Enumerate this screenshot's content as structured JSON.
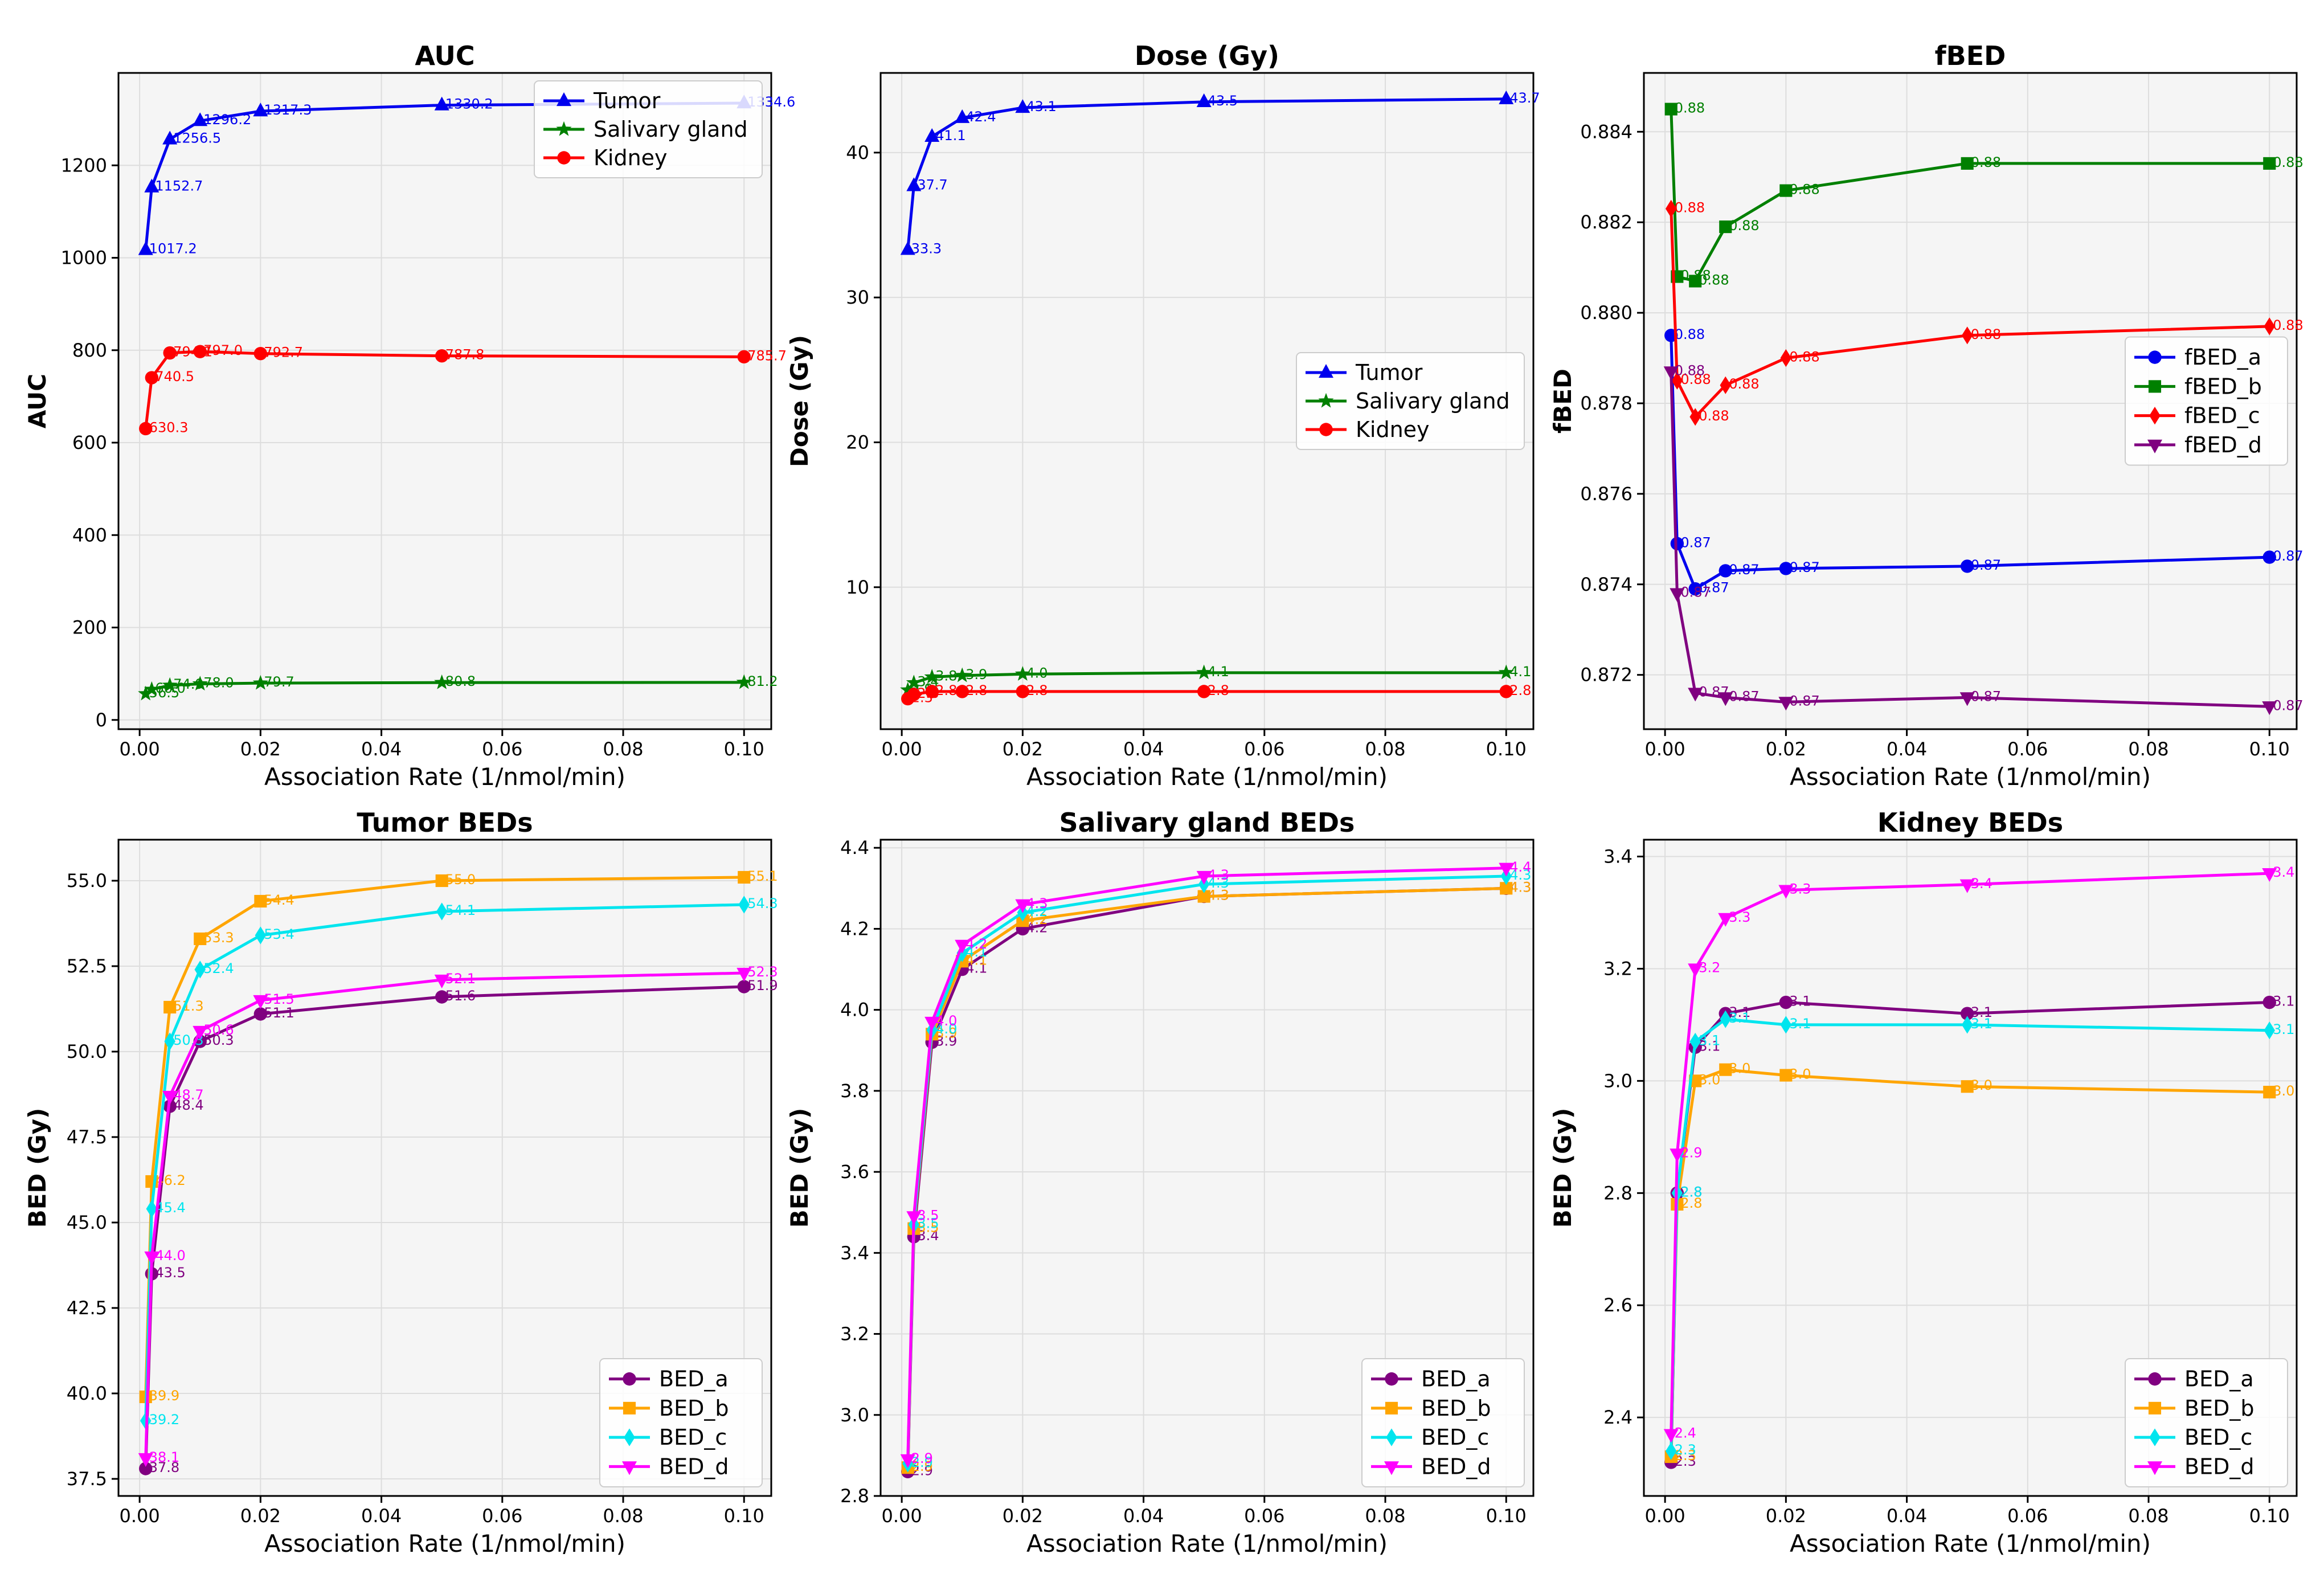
{
  "figure": {
    "panels": 6
  },
  "colors": {
    "blue": "#0000ee",
    "green": "#008000",
    "red": "#ff0000",
    "purple": "#800080",
    "orange": "#ffa500",
    "cyan": "#00e5ee",
    "magenta": "#ff00ff",
    "plot_bg": "#f5f5f5",
    "grid": "#dddddd"
  },
  "chart_data": [
    {
      "type": "line",
      "title": "AUC",
      "xlabel": "Association Rate (1/nmol/min)",
      "ylabel": "AUC",
      "xlim": [
        -0.0035,
        0.1045
      ],
      "ylim": [
        -20,
        1400
      ],
      "xticks": [
        0.0,
        0.02,
        0.04,
        0.06,
        0.08,
        0.1
      ],
      "xtick_labels": [
        "0.00",
        "0.02",
        "0.04",
        "0.06",
        "0.08",
        "0.10"
      ],
      "yticks": [
        0,
        200,
        400,
        600,
        800,
        1000,
        1200
      ],
      "ytick_labels": [
        "0",
        "200",
        "400",
        "600",
        "800",
        "1000",
        "1200"
      ],
      "legend": "top-right",
      "x": [
        0.001,
        0.002,
        0.005,
        0.01,
        0.02,
        0.05,
        0.1
      ],
      "series": [
        {
          "name": "Tumor",
          "color": "blue",
          "marker": "triangle-up",
          "values": [
            1017.2,
            1152.7,
            1256.5,
            1296.2,
            1317.3,
            1330.2,
            1334.6
          ],
          "labels": [
            "1017.2",
            "1152.7",
            "1256.5",
            "1296.2",
            "1317.3",
            "1330.2",
            "1334.6"
          ]
        },
        {
          "name": "Salivary gland",
          "color": "green",
          "marker": "star",
          "values": [
            56.5,
            66.0,
            74.9,
            78.0,
            79.7,
            80.8,
            81.2
          ],
          "labels": [
            "56.5",
            "66.0",
            "74.9",
            "78.0",
            "79.7",
            "80.8",
            "81.2"
          ]
        },
        {
          "name": "Kidney",
          "color": "red",
          "marker": "circle",
          "values": [
            630.3,
            740.5,
            794.1,
            797.0,
            792.7,
            787.8,
            785.7
          ],
          "labels": [
            "630.3",
            "740.5",
            "794.1",
            "797.0",
            "792.7",
            "787.8",
            "785.7"
          ]
        }
      ]
    },
    {
      "type": "line",
      "title": "Dose (Gy)",
      "xlabel": "Association Rate (1/nmol/min)",
      "ylabel": "Dose (Gy)",
      "xlim": [
        -0.0035,
        0.1045
      ],
      "ylim": [
        0.2,
        45.5
      ],
      "xticks": [
        0.0,
        0.02,
        0.04,
        0.06,
        0.08,
        0.1
      ],
      "xtick_labels": [
        "0.00",
        "0.02",
        "0.04",
        "0.06",
        "0.08",
        "0.10"
      ],
      "yticks": [
        10,
        20,
        30,
        40
      ],
      "ytick_labels": [
        "10",
        "20",
        "30",
        "40"
      ],
      "legend": "center-right",
      "x": [
        0.001,
        0.002,
        0.005,
        0.01,
        0.02,
        0.05,
        0.1
      ],
      "series": [
        {
          "name": "Tumor",
          "color": "blue",
          "marker": "triangle-up",
          "values": [
            33.3,
            37.7,
            41.1,
            42.4,
            43.1,
            43.5,
            43.7
          ],
          "labels": [
            "33.3",
            "37.7",
            "41.1",
            "42.4",
            "43.1",
            "43.5",
            "43.7"
          ]
        },
        {
          "name": "Salivary gland",
          "color": "green",
          "marker": "star",
          "values": [
            2.9,
            3.4,
            3.8,
            3.9,
            4.0,
            4.1,
            4.1
          ],
          "labels": [
            "2.9",
            "3.4",
            "3.8",
            "3.9",
            "4.0",
            "4.1",
            "4.1"
          ]
        },
        {
          "name": "Kidney",
          "color": "red",
          "marker": "circle",
          "values": [
            2.3,
            2.6,
            2.8,
            2.8,
            2.8,
            2.8,
            2.8
          ],
          "labels": [
            "2.3",
            "2.6",
            "2.8",
            "2.8",
            "2.8",
            "2.8",
            "2.8"
          ]
        }
      ]
    },
    {
      "type": "line",
      "title": "fBED",
      "xlabel": "Association Rate (1/nmol/min)",
      "ylabel": "fBED",
      "xlim": [
        -0.0035,
        0.1045
      ],
      "ylim": [
        0.8708,
        0.8853
      ],
      "xticks": [
        0.0,
        0.02,
        0.04,
        0.06,
        0.08,
        0.1
      ],
      "xtick_labels": [
        "0.00",
        "0.02",
        "0.04",
        "0.06",
        "0.08",
        "0.10"
      ],
      "yticks": [
        0.872,
        0.874,
        0.876,
        0.878,
        0.88,
        0.882,
        0.884
      ],
      "ytick_labels": [
        "0.872",
        "0.874",
        "0.876",
        "0.878",
        "0.880",
        "0.882",
        "0.884"
      ],
      "legend": "center-right",
      "x": [
        0.001,
        0.002,
        0.005,
        0.01,
        0.02,
        0.05,
        0.1
      ],
      "series": [
        {
          "name": "fBED_a",
          "color": "blue",
          "marker": "circle",
          "values": [
            0.8795,
            0.8749,
            0.8739,
            0.8743,
            0.87435,
            0.8744,
            0.8746
          ],
          "labels": [
            "0.88",
            "0.87",
            "0.87",
            "0.87",
            "0.87",
            "0.87",
            "0.87"
          ]
        },
        {
          "name": "fBED_b",
          "color": "green",
          "marker": "square",
          "values": [
            0.8845,
            0.8808,
            0.8807,
            0.8819,
            0.8827,
            0.8833,
            0.8833
          ],
          "labels": [
            "0.88",
            "0.88",
            "0.88",
            "0.88",
            "0.88",
            "0.88",
            "0.88"
          ]
        },
        {
          "name": "fBED_c",
          "color": "red",
          "marker": "diamond",
          "values": [
            0.8823,
            0.8785,
            0.8777,
            0.8784,
            0.879,
            0.8795,
            0.8797
          ],
          "labels": [
            "0.88",
            "0.88",
            "0.88",
            "0.88",
            "0.88",
            "0.88",
            "0.88"
          ]
        },
        {
          "name": "fBED_d",
          "color": "purple",
          "marker": "triangle-down",
          "values": [
            0.8787,
            0.8738,
            0.8716,
            0.8715,
            0.8714,
            0.8715,
            0.8713
          ],
          "labels": [
            "0.88",
            "0.87",
            "0.87",
            "0.87",
            "0.87",
            "0.87",
            "0.87"
          ]
        }
      ]
    },
    {
      "type": "line",
      "title": "Tumor BEDs",
      "xlabel": "Association Rate (1/nmol/min)",
      "ylabel": "BED (Gy)",
      "xlim": [
        -0.0035,
        0.1045
      ],
      "ylim": [
        37.0,
        56.2
      ],
      "xticks": [
        0.0,
        0.02,
        0.04,
        0.06,
        0.08,
        0.1
      ],
      "xtick_labels": [
        "0.00",
        "0.02",
        "0.04",
        "0.06",
        "0.08",
        "0.10"
      ],
      "yticks": [
        37.5,
        40.0,
        42.5,
        45.0,
        47.5,
        50.0,
        52.5,
        55.0
      ],
      "ytick_labels": [
        "37.5",
        "40.0",
        "42.5",
        "45.0",
        "47.5",
        "50.0",
        "52.5",
        "55.0"
      ],
      "legend": "bottom-right",
      "x": [
        0.001,
        0.002,
        0.005,
        0.01,
        0.02,
        0.05,
        0.1
      ],
      "series": [
        {
          "name": "BED_a",
          "color": "purple",
          "marker": "circle",
          "values": [
            37.8,
            43.5,
            48.4,
            50.3,
            51.1,
            51.6,
            51.9
          ],
          "labels": [
            "37.8",
            "43.5",
            "48.4",
            "50.3",
            "51.1",
            "51.6",
            "51.9"
          ]
        },
        {
          "name": "BED_b",
          "color": "orange",
          "marker": "square",
          "values": [
            39.9,
            46.2,
            51.3,
            53.3,
            54.4,
            55.0,
            55.1
          ],
          "labels": [
            "39.9",
            "46.2",
            "51.3",
            "53.3",
            "54.4",
            "55.0",
            "55.1"
          ]
        },
        {
          "name": "BED_c",
          "color": "cyan",
          "marker": "diamond",
          "values": [
            39.2,
            45.4,
            50.3,
            52.4,
            53.4,
            54.1,
            54.3
          ],
          "labels": [
            "39.2",
            "45.4",
            "50.3",
            "52.4",
            "53.4",
            "54.1",
            "54.3"
          ]
        },
        {
          "name": "BED_d",
          "color": "magenta",
          "marker": "triangle-down",
          "values": [
            38.1,
            44.0,
            48.7,
            50.6,
            51.5,
            52.1,
            52.3
          ],
          "labels": [
            "38.1",
            "44.0",
            "48.7",
            "50.6",
            "51.5",
            "52.1",
            "52.3"
          ]
        }
      ]
    },
    {
      "type": "line",
      "title": "Salivary gland BEDs",
      "xlabel": "Association Rate (1/nmol/min)",
      "ylabel": "BED (Gy)",
      "xlim": [
        -0.0035,
        0.1045
      ],
      "ylim": [
        2.8,
        4.42
      ],
      "xticks": [
        0.0,
        0.02,
        0.04,
        0.06,
        0.08,
        0.1
      ],
      "xtick_labels": [
        "0.00",
        "0.02",
        "0.04",
        "0.06",
        "0.08",
        "0.10"
      ],
      "yticks": [
        2.8,
        3.0,
        3.2,
        3.4,
        3.6,
        3.8,
        4.0,
        4.2,
        4.4
      ],
      "ytick_labels": [
        "2.8",
        "3.0",
        "3.2",
        "3.4",
        "3.6",
        "3.8",
        "4.0",
        "4.2",
        "4.4"
      ],
      "legend": "bottom-right",
      "x": [
        0.001,
        0.002,
        0.005,
        0.01,
        0.02,
        0.05,
        0.1
      ],
      "series": [
        {
          "name": "BED_a",
          "color": "purple",
          "marker": "circle",
          "values": [
            2.86,
            3.44,
            3.92,
            4.1,
            4.2,
            4.28,
            4.3
          ],
          "labels": [
            "2.9",
            "3.4",
            "3.9",
            "4.1",
            "4.2",
            "4.3",
            "4.3"
          ]
        },
        {
          "name": "BED_b",
          "color": "orange",
          "marker": "square",
          "values": [
            2.87,
            3.46,
            3.94,
            4.12,
            4.22,
            4.28,
            4.3
          ],
          "labels": [
            "2.9",
            "3.5",
            "3.9",
            "4.1",
            "4.2",
            "4.3",
            "4.3"
          ]
        },
        {
          "name": "BED_c",
          "color": "cyan",
          "marker": "diamond",
          "values": [
            2.88,
            3.47,
            3.95,
            4.14,
            4.24,
            4.31,
            4.33
          ],
          "labels": [
            "2.9",
            "3.5",
            "4.0",
            "4.1",
            "4.2",
            "4.3",
            "4.3"
          ]
        },
        {
          "name": "BED_d",
          "color": "magenta",
          "marker": "triangle-down",
          "values": [
            2.89,
            3.49,
            3.97,
            4.16,
            4.26,
            4.33,
            4.35
          ],
          "labels": [
            "2.9",
            "3.5",
            "4.0",
            "4.2",
            "4.3",
            "4.3",
            "4.4"
          ]
        }
      ]
    },
    {
      "type": "line",
      "title": "Kidney BEDs",
      "xlabel": "Association Rate (1/nmol/min)",
      "ylabel": "BED (Gy)",
      "xlim": [
        -0.0035,
        0.1045
      ],
      "ylim": [
        2.26,
        3.43
      ],
      "xticks": [
        0.0,
        0.02,
        0.04,
        0.06,
        0.08,
        0.1
      ],
      "xtick_labels": [
        "0.00",
        "0.02",
        "0.04",
        "0.06",
        "0.08",
        "0.10"
      ],
      "yticks": [
        2.4,
        2.6,
        2.8,
        3.0,
        3.2,
        3.4
      ],
      "ytick_labels": [
        "2.4",
        "2.6",
        "2.8",
        "3.0",
        "3.2",
        "3.4"
      ],
      "legend": "bottom-right",
      "x": [
        0.001,
        0.002,
        0.005,
        0.01,
        0.02,
        0.05,
        0.1
      ],
      "series": [
        {
          "name": "BED_a",
          "color": "purple",
          "marker": "circle",
          "values": [
            2.32,
            2.8,
            3.06,
            3.12,
            3.14,
            3.12,
            3.14
          ],
          "labels": [
            "2.3",
            "2.8",
            "3.1",
            "3.1",
            "3.1",
            "3.1",
            "3.1"
          ]
        },
        {
          "name": "BED_b",
          "color": "orange",
          "marker": "square",
          "values": [
            2.33,
            2.78,
            3.0,
            3.02,
            3.01,
            2.99,
            2.98
          ],
          "labels": [
            "2.3",
            "2.8",
            "3.0",
            "3.0",
            "3.0",
            "3.0",
            "3.0"
          ]
        },
        {
          "name": "BED_c",
          "color": "cyan",
          "marker": "diamond",
          "values": [
            2.34,
            2.8,
            3.07,
            3.11,
            3.1,
            3.1,
            3.09
          ],
          "labels": [
            "2.3",
            "2.8",
            "3.1",
            "3.1",
            "3.1",
            "3.1",
            "3.1"
          ]
        },
        {
          "name": "BED_d",
          "color": "magenta",
          "marker": "triangle-down",
          "values": [
            2.37,
            2.87,
            3.2,
            3.29,
            3.34,
            3.35,
            3.37
          ],
          "labels": [
            "2.4",
            "2.9",
            "3.2",
            "3.3",
            "3.3",
            "3.4",
            "3.4"
          ]
        }
      ]
    }
  ]
}
